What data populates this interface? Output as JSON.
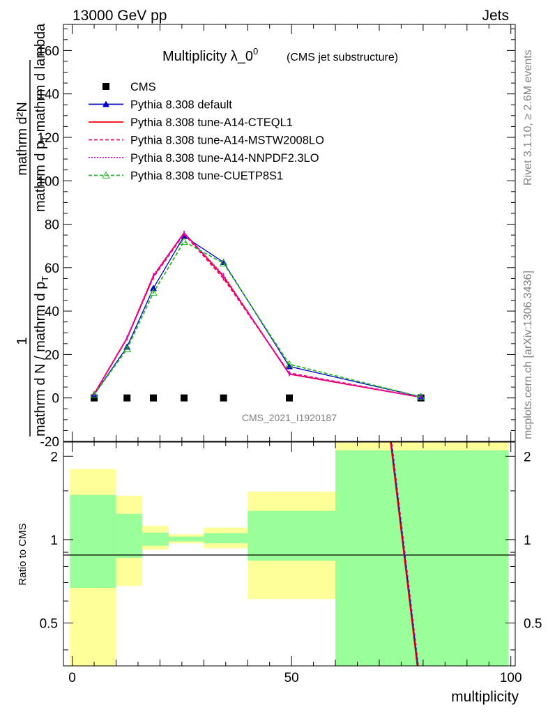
{
  "header": {
    "left": "13000 GeV pp",
    "right": "Jets"
  },
  "side_labels": {
    "rivet": "Rivet 3.1.10, ≥ 2.6M events",
    "mcplots": "mcplots.cern.ch [arXiv:1306.3436]"
  },
  "watermark": "CMS_2021_I1920187",
  "colors": {
    "cms": "#000000",
    "default": "#0000cc",
    "cteql1": "#ee0000",
    "mstw": "#ee0077",
    "nnpdf": "#dd00dd",
    "cuetp8s1": "#22bb22",
    "band_inner": "#99ff99",
    "band_outer": "#ffff99"
  },
  "chart_data": [
    {
      "type": "line",
      "title_main": "Multiplicity λ_0",
      "title_sup": "0",
      "title_sub": "(CMS jet substructure)",
      "ylabel": {
        "frac_top": "mathrm d²N",
        "frac_bottom_a": "mathrm d p",
        "frac_bottom_sub": "T",
        "frac_bottom_b": " mathrm d lambda",
        "prefix_num": "1",
        "prefix_den_a": "mathrm d N / mathrm d p",
        "prefix_den_sub": "T"
      },
      "ylim": [
        -20,
        172
      ],
      "yticks": [
        -20,
        0,
        20,
        40,
        60,
        80,
        100,
        120,
        140,
        160
      ],
      "xlim": [
        -2,
        101
      ],
      "x": [
        5,
        12.5,
        18.5,
        25.5,
        34.5,
        49.5,
        79.5
      ],
      "series": [
        {
          "key": "cms",
          "name": "CMS",
          "values": [
            0,
            0,
            0,
            0,
            0,
            0,
            0
          ],
          "x": [
            5,
            12.5,
            18.5,
            25.5,
            34.5,
            49.5,
            79.5
          ],
          "marker": "square",
          "line": "none"
        },
        {
          "key": "default",
          "name": "Pythia 8.308 default",
          "values": [
            1.5,
            23.5,
            50.5,
            74.5,
            62.5,
            14.5,
            0.5
          ],
          "marker": "triangle",
          "line": "solid"
        },
        {
          "key": "cteql1",
          "name": "Pythia 8.308 tune-A14-CTEQL1",
          "values": [
            1.8,
            27.5,
            56,
            76,
            56,
            11,
            0.3
          ],
          "marker": "none",
          "line": "solid"
        },
        {
          "key": "mstw",
          "name": "Pythia 8.308 tune-A14-MSTW2008LO",
          "values": [
            1.8,
            27.5,
            55.5,
            75.5,
            55,
            11.5,
            0.3
          ],
          "marker": "none",
          "line": "dashed"
        },
        {
          "key": "nnpdf",
          "name": "Pythia 8.308 tune-A14-NNPDF2.3LO",
          "values": [
            1.8,
            27.8,
            56.5,
            76,
            56.5,
            11,
            0.3
          ],
          "marker": "none",
          "line": "dotted"
        },
        {
          "key": "cuetp8s1",
          "name": "Pythia 8.308 tune-CUETP8S1",
          "values": [
            1.5,
            22.5,
            48.5,
            72,
            62,
            15.5,
            0.5
          ],
          "marker": "open-triangle",
          "line": "dashed"
        }
      ],
      "legend_position": "top-left"
    },
    {
      "type": "area",
      "ylabel": "Ratio to CMS",
      "xlabel": "multiplicity",
      "ylim": [
        0.35,
        2.25
      ],
      "yticks": [
        0.5,
        1,
        2
      ],
      "xticks": [
        0,
        50,
        100
      ],
      "xlim": [
        -2,
        101
      ],
      "bands": [
        {
          "x0": -0.5,
          "x1": 10,
          "inner": [
            0.67,
            1.45
          ],
          "outer": [
            0.3,
            1.8
          ]
        },
        {
          "x0": 10,
          "x1": 16,
          "inner": [
            0.86,
            1.24
          ],
          "outer": [
            0.68,
            1.44
          ]
        },
        {
          "x0": 16,
          "x1": 22,
          "inner": [
            0.95,
            1.06
          ],
          "outer": [
            0.92,
            1.12
          ]
        },
        {
          "x0": 22,
          "x1": 30,
          "inner": [
            0.985,
            1.025
          ],
          "outer": [
            0.97,
            1.045
          ]
        },
        {
          "x0": 30,
          "x1": 40,
          "inner": [
            0.97,
            1.055
          ],
          "outer": [
            0.93,
            1.105
          ]
        },
        {
          "x0": 40,
          "x1": 60,
          "inner": [
            0.84,
            1.27
          ],
          "outer": [
            0.61,
            1.49
          ]
        },
        {
          "x0": 60,
          "x1": 99.5,
          "inner": [
            0.3,
            2.1
          ],
          "outer": [
            0.3,
            2.4
          ]
        }
      ],
      "ratio_line": {
        "x": [
          72.5,
          78.8
        ],
        "y": [
          2.4,
          0.35
        ]
      }
    }
  ]
}
